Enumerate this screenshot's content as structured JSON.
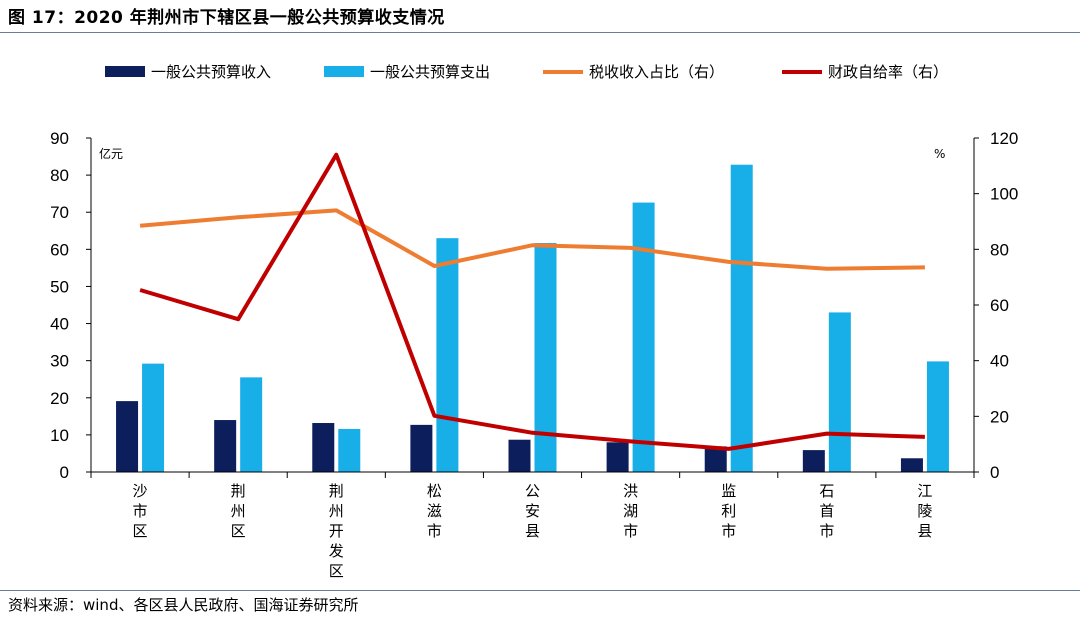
{
  "title": "图 17：2020 年荆州市下辖区县一般公共预算收支情况",
  "source": "资料来源：wind、各区县人民政府、国海证券研究所",
  "colors": {
    "revenue": "#0c1f5c",
    "expenditure": "#18aee8",
    "tax_ratio": "#ee7d31",
    "self_sufficiency": "#c00000"
  },
  "chart_data": {
    "type": "bar",
    "categories": [
      "沙市区",
      "荆州区",
      "荆州开发区",
      "松滋市",
      "公安县",
      "洪湖市",
      "监利市",
      "石首市",
      "江陵县"
    ],
    "left_axis": {
      "unit": "亿元",
      "ylim": [
        0,
        90
      ],
      "ticks": [
        "0",
        "10",
        "20",
        "30",
        "40",
        "50",
        "60",
        "70",
        "80",
        "90"
      ]
    },
    "right_axis": {
      "unit": "%",
      "ylim": [
        0,
        120
      ],
      "ticks": [
        "0",
        "20",
        "40",
        "60",
        "80",
        "100",
        "120"
      ]
    },
    "series": [
      {
        "name": "一般公共预算收入",
        "type": "bar",
        "axis": "left",
        "values": [
          19.1,
          14.0,
          13.2,
          12.7,
          8.7,
          8.0,
          6.9,
          5.9,
          3.7
        ]
      },
      {
        "name": "一般公共预算支出",
        "type": "bar",
        "axis": "left",
        "values": [
          29.2,
          25.5,
          11.6,
          63.0,
          61.7,
          72.6,
          82.8,
          43.0,
          29.8
        ]
      },
      {
        "name": "税收收入占比（右）",
        "type": "line",
        "axis": "right",
        "values": [
          88.5,
          91.5,
          94.0,
          74.0,
          81.5,
          80.5,
          75.5,
          73.0,
          73.5
        ]
      },
      {
        "name": "财政自给率（右）",
        "type": "line",
        "axis": "right",
        "values": [
          65.4,
          54.9,
          114.0,
          20.2,
          14.1,
          11.0,
          8.3,
          13.8,
          12.6
        ]
      }
    ],
    "grid": false,
    "legend_position": "top"
  }
}
